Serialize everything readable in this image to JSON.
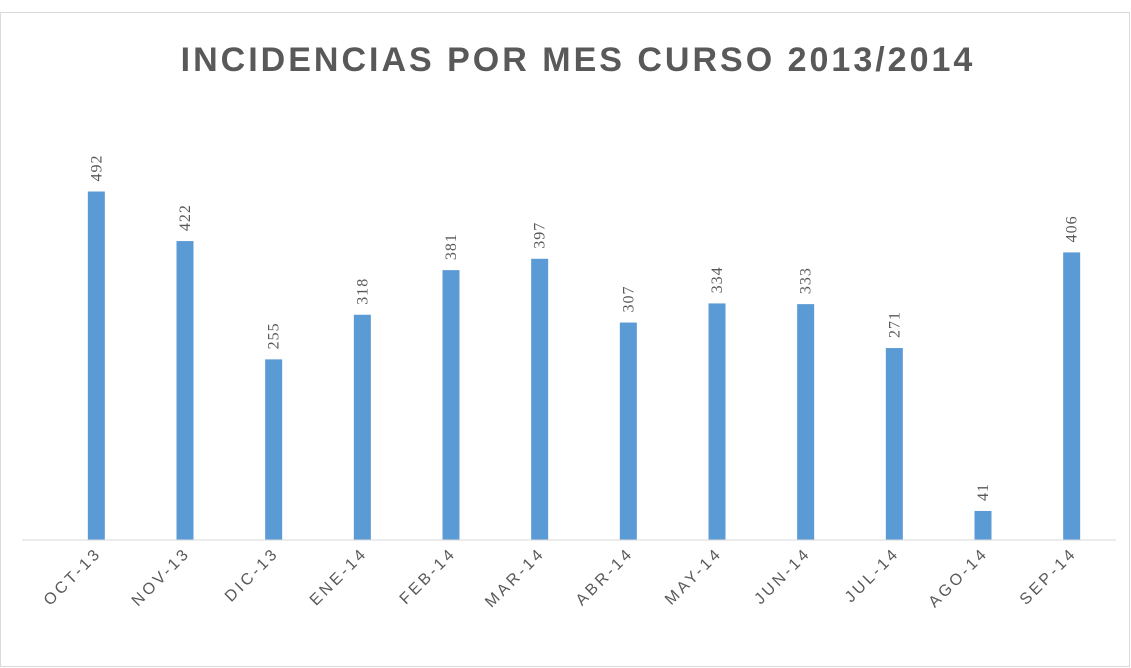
{
  "chart_data": {
    "type": "bar",
    "title": "INCIDENCIAS POR MES CURSO 2013/2014",
    "categories": [
      "OCT-13",
      "NOV-13",
      "DIC-13",
      "ENE-14",
      "FEB-14",
      "MAR-14",
      "ABR-14",
      "MAY-14",
      "JUN-14",
      "JUL-14",
      "AGO-14",
      "SEP-14"
    ],
    "values": [
      492,
      422,
      255,
      318,
      381,
      397,
      307,
      334,
      333,
      271,
      41,
      406
    ],
    "color": "#5b9bd5",
    "ylim": [
      0,
      600
    ],
    "grid": false
  }
}
